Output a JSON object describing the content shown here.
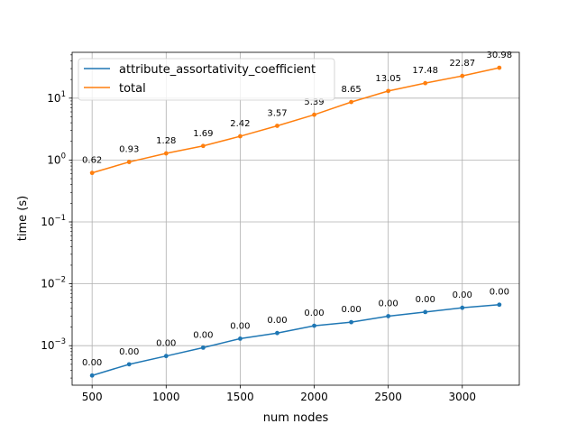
{
  "chart_data": {
    "type": "line",
    "title": "",
    "xlabel": "num nodes",
    "ylabel": "time (s)",
    "xscale": "linear",
    "yscale": "log",
    "xlim": [
      365,
      3385
    ],
    "ylim": [
      0.00023,
      55
    ],
    "grid": true,
    "legend_position": "top-left",
    "x": [
      500,
      750,
      1000,
      1250,
      1500,
      1750,
      2000,
      2250,
      2500,
      2750,
      3000,
      3250
    ],
    "x_ticks": [
      500,
      1000,
      1500,
      2000,
      2500,
      3000
    ],
    "y_ticks": [
      {
        "value": 0.001,
        "base": "10",
        "exp": "−3"
      },
      {
        "value": 0.01,
        "base": "10",
        "exp": "−2"
      },
      {
        "value": 0.1,
        "base": "10",
        "exp": "−1"
      },
      {
        "value": 1,
        "base": "10",
        "exp": "0"
      },
      {
        "value": 10,
        "base": "10",
        "exp": "1"
      }
    ],
    "series": [
      {
        "name": "attribute_assortativity_coefficient",
        "color": "#1f77b4",
        "values": [
          0.00033,
          0.0005,
          0.00068,
          0.00093,
          0.0013,
          0.0016,
          0.0021,
          0.0024,
          0.003,
          0.0035,
          0.0041,
          0.0046
        ],
        "labels": [
          "0.00",
          "0.00",
          "0.00",
          "0.00",
          "0.00",
          "0.00",
          "0.00",
          "0.00",
          "0.00",
          "0.00",
          "0.00",
          "0.00"
        ]
      },
      {
        "name": "total",
        "color": "#ff7f0e",
        "values": [
          0.62,
          0.93,
          1.28,
          1.69,
          2.42,
          3.57,
          5.39,
          8.65,
          13.05,
          17.48,
          22.87,
          30.98
        ],
        "labels": [
          "0.62",
          "0.93",
          "1.28",
          "1.69",
          "2.42",
          "3.57",
          "5.39",
          "8.65",
          "13.05",
          "17.48",
          "22.87",
          "30.98"
        ]
      }
    ]
  }
}
